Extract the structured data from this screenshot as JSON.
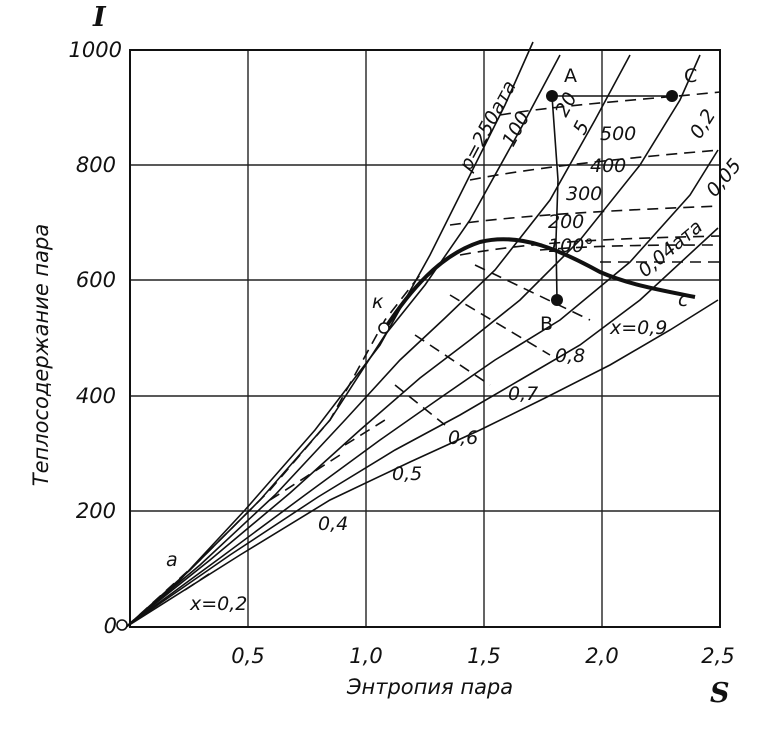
{
  "diagram": {
    "y_axis_letter": "I",
    "x_axis_letter": "S",
    "y_axis_title": "Теплосодержание пара",
    "x_axis_title": "Энтропия пара",
    "y_ticks": [
      "200",
      "400",
      "600",
      "800",
      "1000"
    ],
    "x_ticks": [
      "0,5",
      "1,0",
      "1,5",
      "2,0",
      "2,5"
    ],
    "origin_label": "0",
    "x_range": [
      0,
      2.5
    ],
    "y_range": [
      0,
      1000
    ],
    "pressure_labels": [
      "p=250ата",
      "100",
      "20",
      "5",
      "0,2",
      "0,05",
      "0,04ата"
    ],
    "temperature_labels": [
      "500",
      "400",
      "300",
      "200",
      "100°"
    ],
    "quality_labels": [
      "x=0,2",
      "0,4",
      "0,5",
      "0,6",
      "0,7",
      "0,8",
      "x=0,9"
    ],
    "point_labels": {
      "a": "a",
      "k": "к",
      "c": "c",
      "A": "A",
      "B": "B",
      "C": "C"
    },
    "points": {
      "A": {
        "s": 1.8,
        "i": 920
      },
      "B": {
        "s": 1.8,
        "i": 565
      },
      "C": {
        "s": 2.3,
        "i": 920
      },
      "k": {
        "s": 1.1,
        "i": 515
      }
    }
  }
}
